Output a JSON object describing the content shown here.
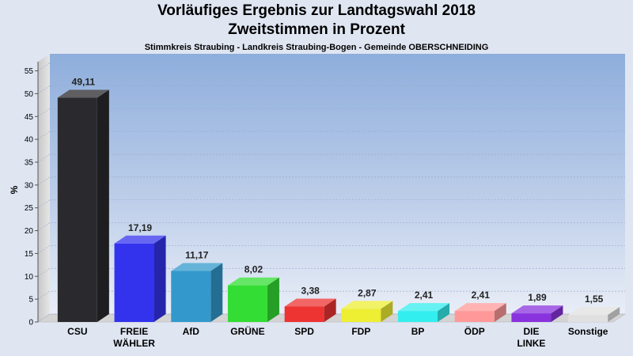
{
  "header": {
    "title_line1": "Vorläufiges Ergebnis zur Landtagswahl 2018",
    "title_line2": "Zweitstimmen in Prozent",
    "subtitle": "Stimmkreis Straubing - Landkreis Straubing-Bogen - Gemeinde OBERSCHNEIDING"
  },
  "chart_data": {
    "type": "bar",
    "title": "Vorläufiges Ergebnis zur Landtagswahl 2018",
    "subtitle": "Zweitstimmen in Prozent",
    "ylabel": "%",
    "xlabel": "",
    "ylim": [
      0,
      57
    ],
    "yticks": [
      0,
      5,
      10,
      15,
      20,
      25,
      30,
      35,
      40,
      45,
      50,
      55
    ],
    "grid": true,
    "categories": [
      "CSU",
      "FREIE WÄHLER",
      "AfD",
      "GRÜNE",
      "SPD",
      "FDP",
      "BP",
      "ÖDP",
      "DIE LINKE",
      "Sonstige"
    ],
    "category_lines": [
      [
        "CSU"
      ],
      [
        "FREIE",
        "WÄHLER"
      ],
      [
        "AfD"
      ],
      [
        "GRÜNE"
      ],
      [
        "SPD"
      ],
      [
        "FDP"
      ],
      [
        "BP"
      ],
      [
        "ÖDP"
      ],
      [
        "DIE",
        "LINKE"
      ],
      [
        "Sonstige"
      ]
    ],
    "values": [
      49.11,
      17.19,
      11.17,
      8.02,
      3.38,
      2.87,
      2.41,
      2.41,
      1.89,
      1.55
    ],
    "value_labels": [
      "49,11",
      "17,19",
      "11,17",
      "8,02",
      "3,38",
      "2,87",
      "2,41",
      "2,41",
      "1,89",
      "1,55"
    ],
    "colors": [
      "#2a2a2e",
      "#3333ee",
      "#3399cc",
      "#33dd33",
      "#ee3333",
      "#eeee33",
      "#33eeee",
      "#ff9999",
      "#8833dd",
      "#e0e0e0"
    ]
  }
}
